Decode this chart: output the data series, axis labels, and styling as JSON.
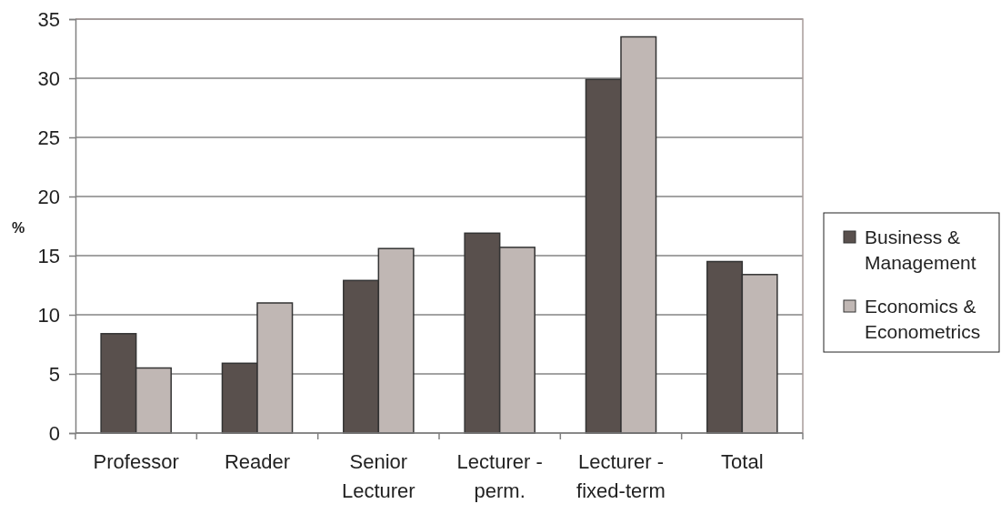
{
  "chart_data": {
    "type": "bar",
    "ylabel": "%",
    "categories": [
      "Professor",
      "Reader",
      "Senior Lecturer",
      "Lecturer - perm.",
      "Lecturer - fixed-term",
      "Total"
    ],
    "series": [
      {
        "name": "Business & Management",
        "color": "#59504d",
        "values": [
          8.4,
          5.9,
          12.9,
          16.9,
          29.9,
          14.5
        ]
      },
      {
        "name": "Economics & Econometrics",
        "color": "#c0b7b4",
        "values": [
          5.5,
          11.0,
          15.6,
          15.7,
          33.5,
          13.4
        ]
      }
    ],
    "ylim": [
      0,
      35
    ],
    "yticks": [
      0,
      5,
      10,
      15,
      20,
      25,
      30,
      35
    ],
    "grid": "y",
    "legend": "right"
  }
}
